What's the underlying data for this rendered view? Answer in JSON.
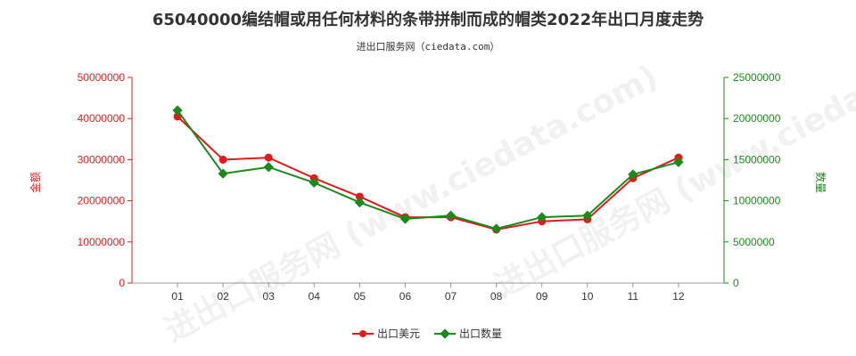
{
  "title": "65040000编结帽或用任何材料的条带拼制而成的帽类2022年出口月度走势",
  "subtitle": "进出口服务网（ciedata.com）",
  "watermark": "进出口服务网 (www.ciedata.com)",
  "chart_data": {
    "type": "line",
    "categories": [
      "01",
      "02",
      "03",
      "04",
      "05",
      "06",
      "07",
      "08",
      "09",
      "10",
      "11",
      "12"
    ],
    "series": [
      {
        "name": "出口美元",
        "axis": "left",
        "color": "#e31a1c",
        "values": [
          40500000,
          30000000,
          30500000,
          25500000,
          21000000,
          16000000,
          16000000,
          13000000,
          15000000,
          15500000,
          25500000,
          30500000
        ]
      },
      {
        "name": "出口数量",
        "axis": "right",
        "color": "#1a8a1a",
        "values": [
          21000000,
          13300000,
          14100000,
          12200000,
          9800000,
          7800000,
          8200000,
          6600000,
          8000000,
          8200000,
          13200000,
          14700000
        ]
      }
    ],
    "y_left": {
      "label": "金额",
      "min": 0,
      "max": 50000000,
      "ticks": [
        "0",
        "10000000",
        "20000000",
        "30000000",
        "40000000",
        "50000000"
      ],
      "color": "#e31a1c"
    },
    "y_right": {
      "label": "数量",
      "min": 0,
      "max": 25000000,
      "ticks": [
        "0",
        "5000000",
        "10000000",
        "15000000",
        "20000000",
        "25000000"
      ],
      "color": "#1a8a1a"
    },
    "grid": false,
    "legend_position": "bottom-center"
  }
}
